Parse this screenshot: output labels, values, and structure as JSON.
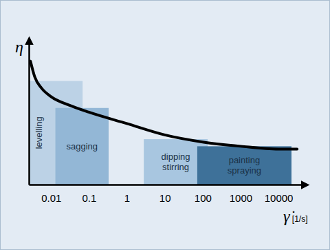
{
  "chart_data": {
    "type": "line",
    "x_label": "γ̇ [1/s]",
    "y_label": "η",
    "log": "x",
    "xlim": [
      0.0026,
      43000
    ],
    "xticks": [
      0.01,
      0.1,
      1,
      10,
      100,
      1000,
      10000
    ],
    "ylim": [
      0,
      10
    ],
    "yticks": [],
    "tick_labels": "x",
    "series": [
      {
        "color": "#000000",
        "x": [
          0.00286,
          0.0037,
          0.0056,
          0.01,
          0.03,
          0.1,
          1,
          10,
          100,
          1000,
          10000,
          31000
        ],
        "values": [
          8.7,
          7.6,
          6.8,
          6.2,
          5.6,
          5.1,
          4.3,
          3.5,
          3.0,
          2.7,
          2.5,
          2.5
        ]
      }
    ],
    "regions": [
      {
        "label": [
          "levelling"
        ],
        "x0": 0.0026,
        "x1": 0.068,
        "value": 7.3,
        "color": "#bcd2e6"
      },
      {
        "label": [
          "sagging"
        ],
        "x0": 0.013,
        "x1": 0.33,
        "value": 5.4,
        "color": "#93b7d6"
      },
      {
        "label": [
          "dipping",
          "stirring"
        ],
        "x0": 2.8,
        "x1": 135,
        "value": 3.2,
        "color": "#a8c6e0"
      },
      {
        "label": [
          "painting",
          "spraying"
        ],
        "x0": 72,
        "x1": 22000,
        "value": 2.7,
        "color": "#3e7199"
      }
    ]
  }
}
